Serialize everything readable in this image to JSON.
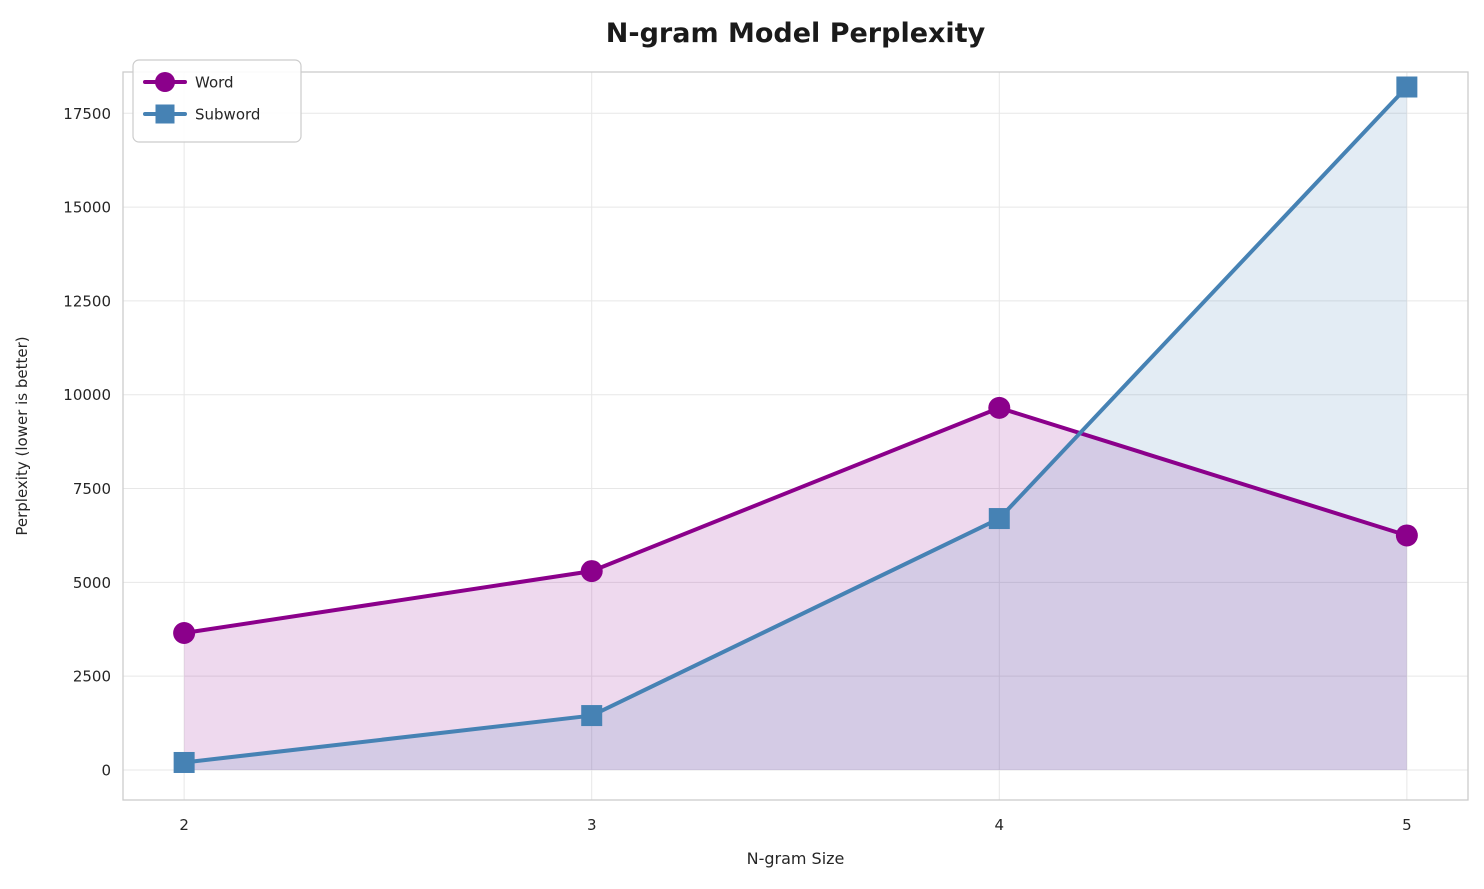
{
  "figure": {
    "background": "#ffffff"
  },
  "chart_data": {
    "type": "line",
    "title": "N-gram Model Perplexity",
    "xlabel": "N-gram Size",
    "ylabel": "Perplexity (lower is better)",
    "x": [
      2,
      3,
      4,
      5
    ],
    "xticks": [
      2,
      3,
      4,
      5
    ],
    "yticks": [
      0,
      2500,
      5000,
      7500,
      10000,
      12500,
      15000,
      17500
    ],
    "xlim": [
      1.85,
      5.15
    ],
    "ylim": [
      -800,
      18600
    ],
    "grid": true,
    "legend_position": "upper left",
    "series": [
      {
        "name": "Word",
        "color": "#8B008B",
        "marker": "circle",
        "values": [
          3650,
          5300,
          9650,
          6250
        ],
        "fill_to_zero": true,
        "fill_opacity": 0.15
      },
      {
        "name": "Subword",
        "color": "#4682B4",
        "marker": "square",
        "values": [
          200,
          1450,
          6700,
          18200
        ],
        "fill_to_zero": true,
        "fill_opacity": 0.15
      }
    ],
    "style": {
      "grid_color": "#e7e7e7",
      "spine_color": "#cccccc",
      "tick_label_color": "#262626",
      "title_color": "#1a1a1a",
      "line_width": 4
    }
  }
}
